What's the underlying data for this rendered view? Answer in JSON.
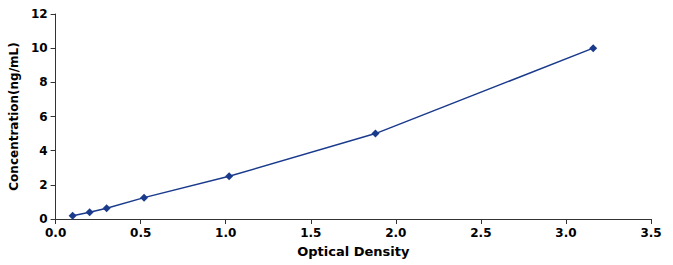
{
  "chart_data": {
    "type": "line",
    "x": [
      0.1,
      0.2,
      0.3,
      0.52,
      1.02,
      1.88,
      3.16
    ],
    "values": [
      0.19,
      0.39,
      0.625,
      1.25,
      2.5,
      5.0,
      10.0
    ],
    "color": "#1a3a8c",
    "marker": "diamond",
    "xlabel": "Optical Density",
    "ylabel": "Concentration(ng/mL)",
    "xlim": [
      0,
      3.5
    ],
    "ylim": [
      0,
      12
    ],
    "xticks": [
      {
        "value": 0,
        "label": "0.0"
      },
      0.5,
      {
        "value": 1,
        "label": "1.0"
      },
      1.5,
      {
        "value": 2,
        "label": "2.0"
      },
      2.5,
      {
        "value": 3,
        "label": "3.0"
      },
      3.5
    ],
    "yticks": [
      0,
      2,
      4,
      6,
      8,
      10,
      12
    ],
    "grid": false
  }
}
